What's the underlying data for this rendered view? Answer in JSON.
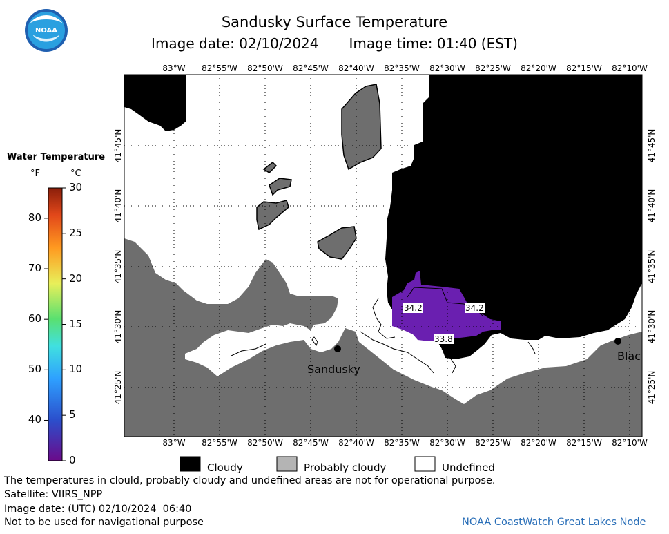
{
  "header": {
    "title": "Sandusky Surface Temperature",
    "image_date": "Image date: 02/10/2024",
    "image_time": "Image time: 01:40 (EST)"
  },
  "logo": {
    "text": "NOAA",
    "icon": "noaa-logo-icon"
  },
  "map": {
    "lon_labels": [
      "83°W",
      "82°55'W",
      "82°50'W",
      "82°45'W",
      "82°40'W",
      "82°35'W",
      "82°30'W",
      "82°25'W",
      "82°20'W",
      "82°15'W",
      "82°10'W"
    ],
    "lat_labels": [
      "41°45'N",
      "41°40'N",
      "41°35'N",
      "41°30'N",
      "41°25'N"
    ],
    "places": [
      "Sandusky",
      "Blac"
    ],
    "temperature_labels": [
      "34.2",
      "34.2",
      "33.8"
    ],
    "colors": {
      "land": "#6e6e6e",
      "cloudy": "#000000",
      "probably_cloudy": "#6e6e6e",
      "undefined": "#ffffff",
      "cold_water": "#6a1fb0"
    }
  },
  "colorbar": {
    "title": "Water Temperature",
    "unit_f": "°F",
    "unit_c": "°C",
    "f_ticks": [
      "80",
      "70",
      "60",
      "50",
      "40"
    ],
    "c_ticks": [
      "30",
      "25",
      "20",
      "15",
      "10",
      "5",
      "0"
    ]
  },
  "legend": {
    "cloudy": "Cloudy",
    "probably_cloudy": "Probably cloudy",
    "undefined": "Undefined"
  },
  "footer": {
    "disclaimer": "The temperatures in clould, probably cloudy and undefined areas are not for operational purpose.",
    "satellite": "Satellite: VIIRS_NPP",
    "utc_date": "Image date: (UTC) 02/10/2024  06:40",
    "nav_warning": "Not to be used for navigational purpose",
    "credit": "NOAA CoastWatch Great Lakes Node"
  }
}
